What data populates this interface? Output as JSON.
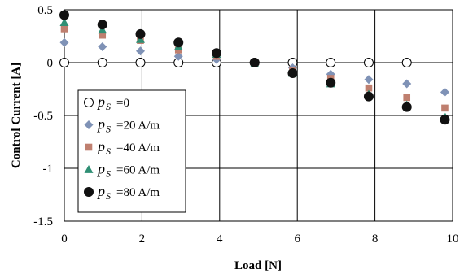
{
  "chart_data": {
    "type": "scatter",
    "xlabel": "Load [N]",
    "ylabel": "Control Current [A]",
    "xlim": [
      0,
      10
    ],
    "ylim": [
      -1.5,
      0.5
    ],
    "x_ticks": [
      0,
      2,
      4,
      6,
      8,
      10
    ],
    "y_ticks": [
      0.5,
      0,
      -0.5,
      -1,
      -1.5
    ],
    "x_tick_labels": [
      "0",
      "2",
      "4",
      "6",
      "8",
      "10"
    ],
    "y_tick_labels": [
      "0.5",
      "0",
      "-0.5",
      "-1",
      "-1.5"
    ],
    "grid": true,
    "legend_position": "left",
    "series": [
      {
        "name": "=0",
        "symbol": "p",
        "subscript": "S",
        "marker": "open-circle",
        "color": "#000000",
        "points": [
          [
            0,
            0
          ],
          [
            0.98,
            0
          ],
          [
            1.96,
            0
          ],
          [
            2.94,
            0
          ],
          [
            3.92,
            0
          ],
          [
            4.9,
            0
          ],
          [
            5.88,
            0
          ],
          [
            6.86,
            0
          ],
          [
            7.84,
            0
          ],
          [
            8.82,
            0
          ]
        ]
      },
      {
        "name": "=20 A/m",
        "symbol": "p",
        "subscript": "S",
        "marker": "diamond",
        "color": "#7f92b6",
        "points": [
          [
            0,
            0.19
          ],
          [
            0.98,
            0.15
          ],
          [
            1.96,
            0.11
          ],
          [
            2.94,
            0.06
          ],
          [
            3.92,
            0.03
          ],
          [
            4.9,
            0
          ],
          [
            5.88,
            -0.05
          ],
          [
            6.86,
            -0.11
          ],
          [
            7.84,
            -0.16
          ],
          [
            8.82,
            -0.2
          ],
          [
            9.8,
            -0.28
          ]
        ]
      },
      {
        "name": "=40 A/m",
        "symbol": "p",
        "subscript": "S",
        "marker": "square",
        "color": "#bf7f6f",
        "points": [
          [
            0,
            0.32
          ],
          [
            0.98,
            0.26
          ],
          [
            1.96,
            0.21
          ],
          [
            2.94,
            0.12
          ],
          [
            3.92,
            0.06
          ],
          [
            4.9,
            0
          ],
          [
            5.88,
            -0.08
          ],
          [
            6.86,
            -0.15
          ],
          [
            7.84,
            -0.24
          ],
          [
            8.82,
            -0.33
          ],
          [
            9.8,
            -0.43
          ]
        ]
      },
      {
        "name": "=60 A/m",
        "symbol": "p",
        "subscript": "S",
        "marker": "triangle",
        "color": "#2f8f74",
        "points": [
          [
            0,
            0.38
          ],
          [
            0.98,
            0.31
          ],
          [
            1.96,
            0.22
          ],
          [
            2.94,
            0.15
          ],
          [
            3.92,
            0.08
          ],
          [
            4.9,
            -0.01
          ],
          [
            5.88,
            -0.1
          ],
          [
            6.86,
            -0.2
          ],
          [
            7.84,
            -0.3
          ],
          [
            8.82,
            -0.4
          ],
          [
            9.8,
            -0.51
          ]
        ]
      },
      {
        "name": "=80 A/m",
        "symbol": "p",
        "subscript": "S",
        "marker": "filled-circle",
        "color": "#111111",
        "points": [
          [
            0,
            0.45
          ],
          [
            0.98,
            0.36
          ],
          [
            1.96,
            0.27
          ],
          [
            2.94,
            0.19
          ],
          [
            3.92,
            0.09
          ],
          [
            4.9,
            0
          ],
          [
            5.88,
            -0.1
          ],
          [
            6.86,
            -0.19
          ],
          [
            7.84,
            -0.32
          ],
          [
            8.82,
            -0.42
          ],
          [
            9.8,
            -0.54
          ]
        ]
      }
    ]
  }
}
